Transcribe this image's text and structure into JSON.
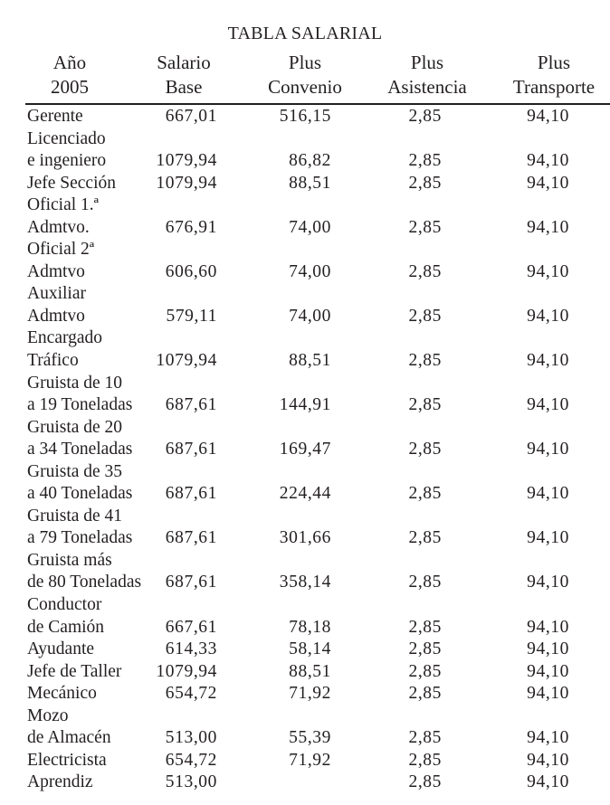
{
  "title": "TABLA SALARIAL",
  "headers": [
    {
      "line1": "Año",
      "line2": "2005"
    },
    {
      "line1": "Salario",
      "line2": "Base"
    },
    {
      "line1": "Plus",
      "line2": "Convenio"
    },
    {
      "line1": "Plus",
      "line2": "Asistencia"
    },
    {
      "line1": "Plus",
      "line2": "Transporte"
    }
  ],
  "rows": [
    {
      "name_lines": [
        "Gerente"
      ],
      "salario_base": "667,01",
      "plus_convenio": "516,15",
      "plus_asistencia": "2,85",
      "plus_transporte": "94,10"
    },
    {
      "name_lines": [
        "Licenciado",
        "e ingeniero"
      ],
      "salario_base": "1079,94",
      "plus_convenio": "86,82",
      "plus_asistencia": "2,85",
      "plus_transporte": "94,10"
    },
    {
      "name_lines": [
        "Jefe Sección"
      ],
      "salario_base": "1079,94",
      "plus_convenio": "88,51",
      "plus_asistencia": "2,85",
      "plus_transporte": "94,10"
    },
    {
      "name_lines": [
        "Oficial 1.ª",
        "Admtvo."
      ],
      "salario_base": "676,91",
      "plus_convenio": "74,00",
      "plus_asistencia": "2,85",
      "plus_transporte": "94,10"
    },
    {
      "name_lines": [
        "Oficial 2ª",
        "Admtvo"
      ],
      "salario_base": "606,60",
      "plus_convenio": "74,00",
      "plus_asistencia": "2,85",
      "plus_transporte": "94,10"
    },
    {
      "name_lines": [
        "Auxiliar",
        "Admtvo"
      ],
      "salario_base": "579,11",
      "plus_convenio": "74,00",
      "plus_asistencia": "2,85",
      "plus_transporte": "94,10"
    },
    {
      "name_lines": [
        "Encargado",
        "Tráfico"
      ],
      "salario_base": "1079,94",
      "plus_convenio": "88,51",
      "plus_asistencia": "2,85",
      "plus_transporte": "94,10"
    },
    {
      "name_lines": [
        "Gruista de 10",
        "a 19 Toneladas"
      ],
      "salario_base": "687,61",
      "plus_convenio": "144,91",
      "plus_asistencia": "2,85",
      "plus_transporte": "94,10"
    },
    {
      "name_lines": [
        "Gruista de 20",
        "a 34 Toneladas"
      ],
      "salario_base": "687,61",
      "plus_convenio": "169,47",
      "plus_asistencia": "2,85",
      "plus_transporte": "94,10"
    },
    {
      "name_lines": [
        "Gruista de 35",
        "a 40 Toneladas"
      ],
      "salario_base": "687,61",
      "plus_convenio": "224,44",
      "plus_asistencia": "2,85",
      "plus_transporte": "94,10"
    },
    {
      "name_lines": [
        "Gruista de 41",
        "a 79 Toneladas"
      ],
      "salario_base": "687,61",
      "plus_convenio": "301,66",
      "plus_asistencia": "2,85",
      "plus_transporte": "94,10"
    },
    {
      "name_lines": [
        "Gruista más",
        "de 80 Toneladas"
      ],
      "salario_base": "687,61",
      "plus_convenio": "358,14",
      "plus_asistencia": "2,85",
      "plus_transporte": "94,10"
    },
    {
      "name_lines": [
        "Conductor",
        "de Camión"
      ],
      "salario_base": "667,61",
      "plus_convenio": "78,18",
      "plus_asistencia": "2,85",
      "plus_transporte": "94,10"
    },
    {
      "name_lines": [
        "Ayudante"
      ],
      "salario_base": "614,33",
      "plus_convenio": "58,14",
      "plus_asistencia": "2,85",
      "plus_transporte": "94,10"
    },
    {
      "name_lines": [
        "Jefe de Taller"
      ],
      "salario_base": "1079,94",
      "plus_convenio": "88,51",
      "plus_asistencia": "2,85",
      "plus_transporte": "94,10"
    },
    {
      "name_lines": [
        "Mecánico"
      ],
      "salario_base": "654,72",
      "plus_convenio": "71,92",
      "plus_asistencia": "2,85",
      "plus_transporte": "94,10"
    },
    {
      "name_lines": [
        "Mozo",
        "de Almacén"
      ],
      "salario_base": "513,00",
      "plus_convenio": "55,39",
      "plus_asistencia": "2,85",
      "plus_transporte": "94,10"
    },
    {
      "name_lines": [
        "Electricista"
      ],
      "salario_base": "654,72",
      "plus_convenio": "71,92",
      "plus_asistencia": "2,85",
      "plus_transporte": "94,10"
    },
    {
      "name_lines": [
        "Aprendiz"
      ],
      "salario_base": "513,00",
      "plus_convenio": "",
      "plus_asistencia": "2,85",
      "plus_transporte": "94,10"
    }
  ]
}
